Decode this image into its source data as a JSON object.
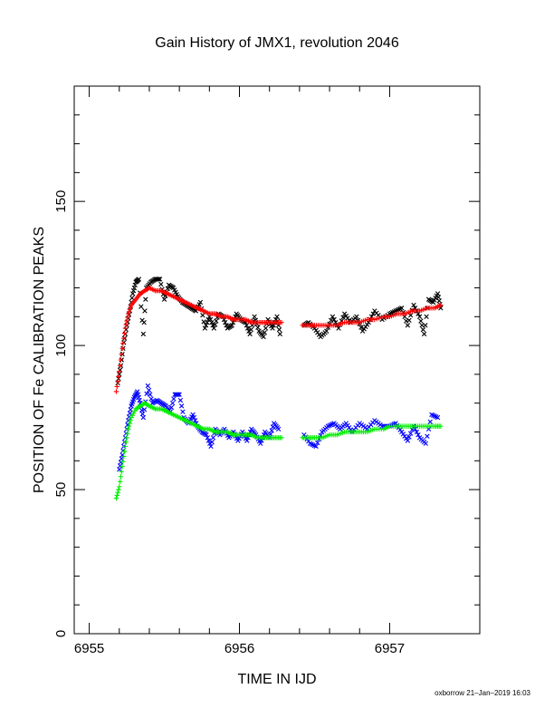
{
  "chart_data": {
    "type": "scatter",
    "title": "Gain History of JMX1, revolution 2046",
    "xlabel": "TIME IN IJD",
    "ylabel": "POSITION OF Fe CALIBRATION PEAKS",
    "xlim": [
      6954.9,
      6957.6
    ],
    "ylim": [
      0,
      190
    ],
    "xticks": [
      "6955",
      "6956",
      "6957"
    ],
    "yticks": [
      "0",
      "50",
      "100",
      "150"
    ],
    "grid": false,
    "legend": "none",
    "series": [
      {
        "marker": "x",
        "color": "#000000",
        "points": [
          [
            6955.19,
            87
          ],
          [
            6955.21,
            93
          ],
          [
            6955.23,
            101
          ],
          [
            6955.25,
            107
          ],
          [
            6955.27,
            112
          ],
          [
            6955.29,
            118
          ],
          [
            6955.31,
            122
          ],
          [
            6955.33,
            123
          ],
          [
            6955.36,
            104
          ],
          [
            6955.38,
            120
          ],
          [
            6955.41,
            122
          ],
          [
            6955.44,
            123
          ],
          [
            6955.47,
            123
          ],
          [
            6955.5,
            116
          ],
          [
            6955.53,
            121
          ],
          [
            6955.56,
            120
          ],
          [
            6955.59,
            117
          ],
          [
            6955.62,
            115
          ],
          [
            6955.65,
            114
          ],
          [
            6955.68,
            113
          ],
          [
            6955.71,
            112
          ],
          [
            6955.74,
            115
          ],
          [
            6955.77,
            106
          ],
          [
            6955.8,
            110
          ],
          [
            6955.83,
            106
          ],
          [
            6955.86,
            111
          ],
          [
            6955.89,
            110
          ],
          [
            6955.92,
            106
          ],
          [
            6955.95,
            107
          ],
          [
            6955.98,
            111
          ],
          [
            6956.01,
            109
          ],
          [
            6956.04,
            108
          ],
          [
            6956.07,
            104
          ],
          [
            6956.1,
            110
          ],
          [
            6956.13,
            105
          ],
          [
            6956.16,
            103
          ],
          [
            6956.19,
            109
          ],
          [
            6956.22,
            106
          ],
          [
            6956.25,
            110
          ],
          [
            6956.27,
            104
          ],
          [
            6956.43,
            107
          ],
          [
            6956.46,
            108
          ],
          [
            6956.5,
            106
          ],
          [
            6956.54,
            103
          ],
          [
            6956.58,
            105
          ],
          [
            6956.62,
            110
          ],
          [
            6956.66,
            106
          ],
          [
            6956.7,
            111
          ],
          [
            6956.74,
            108
          ],
          [
            6956.78,
            110
          ],
          [
            6956.82,
            105
          ],
          [
            6956.86,
            108
          ],
          [
            6956.9,
            112
          ],
          [
            6956.95,
            109
          ],
          [
            6957.0,
            111
          ],
          [
            6957.04,
            112
          ],
          [
            6957.08,
            113
          ],
          [
            6957.12,
            107
          ],
          [
            6957.16,
            114
          ],
          [
            6957.2,
            110
          ],
          [
            6957.23,
            104
          ],
          [
            6957.26,
            116
          ],
          [
            6957.29,
            115
          ],
          [
            6957.32,
            118
          ],
          [
            6957.34,
            113
          ]
        ]
      },
      {
        "marker": "+",
        "color": "#ff0000",
        "points": [
          [
            6955.18,
            84
          ],
          [
            6955.2,
            91
          ],
          [
            6955.22,
            99
          ],
          [
            6955.24,
            106
          ],
          [
            6955.26,
            111
          ],
          [
            6955.28,
            114
          ],
          [
            6955.31,
            116
          ],
          [
            6955.34,
            118
          ],
          [
            6955.37,
            119
          ],
          [
            6955.4,
            120
          ],
          [
            6955.44,
            119
          ],
          [
            6955.48,
            119
          ],
          [
            6955.52,
            118
          ],
          [
            6955.56,
            117
          ],
          [
            6955.6,
            116
          ],
          [
            6955.64,
            115
          ],
          [
            6955.68,
            114
          ],
          [
            6955.72,
            113
          ],
          [
            6955.76,
            112
          ],
          [
            6955.8,
            111
          ],
          [
            6955.84,
            111
          ],
          [
            6955.88,
            110
          ],
          [
            6955.92,
            110
          ],
          [
            6955.96,
            109
          ],
          [
            6956.0,
            109
          ],
          [
            6956.04,
            109
          ],
          [
            6956.08,
            108
          ],
          [
            6956.12,
            108
          ],
          [
            6956.16,
            108
          ],
          [
            6956.2,
            108
          ],
          [
            6956.24,
            108
          ],
          [
            6956.28,
            108
          ],
          [
            6956.42,
            107
          ],
          [
            6956.46,
            107
          ],
          [
            6956.5,
            107
          ],
          [
            6956.55,
            107
          ],
          [
            6956.6,
            107
          ],
          [
            6956.65,
            107
          ],
          [
            6956.7,
            108
          ],
          [
            6956.75,
            108
          ],
          [
            6956.8,
            108
          ],
          [
            6956.85,
            109
          ],
          [
            6956.9,
            109
          ],
          [
            6956.96,
            110
          ],
          [
            6957.0,
            110
          ],
          [
            6957.05,
            111
          ],
          [
            6957.1,
            111
          ],
          [
            6957.15,
            112
          ],
          [
            6957.2,
            112
          ],
          [
            6957.25,
            113
          ],
          [
            6957.3,
            113
          ],
          [
            6957.34,
            114
          ]
        ]
      },
      {
        "marker": "x",
        "color": "#0000ff",
        "points": [
          [
            6955.2,
            57
          ],
          [
            6955.22,
            62
          ],
          [
            6955.24,
            68
          ],
          [
            6955.26,
            74
          ],
          [
            6955.28,
            79
          ],
          [
            6955.3,
            82
          ],
          [
            6955.32,
            84
          ],
          [
            6955.34,
            80
          ],
          [
            6955.36,
            75
          ],
          [
            6955.39,
            86
          ],
          [
            6955.42,
            80
          ],
          [
            6955.45,
            81
          ],
          [
            6955.48,
            80
          ],
          [
            6955.51,
            79
          ],
          [
            6955.54,
            77
          ],
          [
            6955.57,
            83
          ],
          [
            6955.6,
            83
          ],
          [
            6955.63,
            75
          ],
          [
            6955.66,
            73
          ],
          [
            6955.69,
            76
          ],
          [
            6955.72,
            72
          ],
          [
            6955.75,
            70
          ],
          [
            6955.78,
            69
          ],
          [
            6955.81,
            65
          ],
          [
            6955.84,
            71
          ],
          [
            6955.87,
            69
          ],
          [
            6955.9,
            71
          ],
          [
            6955.93,
            68
          ],
          [
            6955.96,
            70
          ],
          [
            6955.99,
            67
          ],
          [
            6956.02,
            70
          ],
          [
            6956.05,
            67
          ],
          [
            6956.08,
            71
          ],
          [
            6956.11,
            69
          ],
          [
            6956.14,
            66
          ],
          [
            6956.17,
            70
          ],
          [
            6956.2,
            68
          ],
          [
            6956.23,
            73
          ],
          [
            6956.26,
            71
          ],
          [
            6956.43,
            69
          ],
          [
            6956.47,
            66
          ],
          [
            6956.51,
            65
          ],
          [
            6956.55,
            70
          ],
          [
            6956.59,
            72
          ],
          [
            6956.63,
            73
          ],
          [
            6956.67,
            71
          ],
          [
            6956.71,
            73
          ],
          [
            6956.75,
            70
          ],
          [
            6956.8,
            73
          ],
          [
            6956.85,
            71
          ],
          [
            6956.9,
            74
          ],
          [
            6956.95,
            72
          ],
          [
            6957.0,
            72
          ],
          [
            6957.04,
            73
          ],
          [
            6957.08,
            70
          ],
          [
            6957.12,
            67
          ],
          [
            6957.16,
            72
          ],
          [
            6957.2,
            68
          ],
          [
            6957.24,
            66
          ],
          [
            6957.28,
            76
          ],
          [
            6957.32,
            75
          ]
        ]
      },
      {
        "marker": "+",
        "color": "#00ee00",
        "points": [
          [
            6955.18,
            47
          ],
          [
            6955.2,
            51
          ],
          [
            6955.22,
            58
          ],
          [
            6955.24,
            65
          ],
          [
            6955.26,
            71
          ],
          [
            6955.28,
            75
          ],
          [
            6955.31,
            78
          ],
          [
            6955.34,
            79
          ],
          [
            6955.37,
            80
          ],
          [
            6955.4,
            79
          ],
          [
            6955.44,
            78
          ],
          [
            6955.48,
            78
          ],
          [
            6955.52,
            77
          ],
          [
            6955.56,
            76
          ],
          [
            6955.6,
            75
          ],
          [
            6955.64,
            74
          ],
          [
            6955.68,
            73
          ],
          [
            6955.72,
            72
          ],
          [
            6955.76,
            71
          ],
          [
            6955.8,
            71
          ],
          [
            6955.84,
            70
          ],
          [
            6955.88,
            70
          ],
          [
            6955.92,
            70
          ],
          [
            6955.96,
            69
          ],
          [
            6956.0,
            69
          ],
          [
            6956.04,
            69
          ],
          [
            6956.08,
            69
          ],
          [
            6956.12,
            68
          ],
          [
            6956.16,
            68
          ],
          [
            6956.2,
            68
          ],
          [
            6956.24,
            68
          ],
          [
            6956.28,
            68
          ],
          [
            6956.42,
            68
          ],
          [
            6956.46,
            68
          ],
          [
            6956.5,
            68
          ],
          [
            6956.55,
            68
          ],
          [
            6956.6,
            69
          ],
          [
            6956.65,
            69
          ],
          [
            6956.7,
            70
          ],
          [
            6956.75,
            70
          ],
          [
            6956.8,
            70
          ],
          [
            6956.85,
            70
          ],
          [
            6956.9,
            71
          ],
          [
            6956.96,
            71
          ],
          [
            6957.0,
            72
          ],
          [
            6957.05,
            72
          ],
          [
            6957.1,
            72
          ],
          [
            6957.15,
            72
          ],
          [
            6957.2,
            72
          ],
          [
            6957.25,
            72
          ],
          [
            6957.3,
            72
          ],
          [
            6957.34,
            72
          ]
        ]
      }
    ]
  },
  "footer": "oxborrow 21–Jan–2019 16:03"
}
